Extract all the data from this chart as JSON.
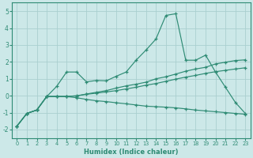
{
  "x": [
    0,
    1,
    2,
    3,
    4,
    5,
    6,
    7,
    8,
    9,
    10,
    11,
    12,
    13,
    14,
    15,
    16,
    17,
    18,
    19,
    20,
    21,
    22,
    23
  ],
  "line1": [
    -1.8,
    -1.05,
    -0.85,
    -0.05,
    0.55,
    1.4,
    1.4,
    0.82,
    0.9,
    0.88,
    1.15,
    1.4,
    2.1,
    2.7,
    3.35,
    4.75,
    4.85,
    2.1,
    2.1,
    2.4,
    1.4,
    0.5,
    -0.4,
    -1.05
  ],
  "line2": [
    -1.8,
    -1.05,
    -0.85,
    -0.05,
    -0.05,
    -0.05,
    -0.12,
    -0.22,
    -0.3,
    -0.35,
    -0.42,
    -0.48,
    -0.55,
    -0.62,
    -0.65,
    -0.68,
    -0.72,
    -0.78,
    -0.85,
    -0.9,
    -0.95,
    -1.0,
    -1.05,
    -1.1
  ],
  "line3": [
    -1.8,
    -1.05,
    -0.85,
    -0.05,
    -0.05,
    -0.05,
    -0.02,
    0.1,
    0.2,
    0.3,
    0.45,
    0.58,
    0.68,
    0.8,
    1.0,
    1.12,
    1.28,
    1.45,
    1.58,
    1.68,
    1.88,
    1.98,
    2.08,
    2.12
  ],
  "line4": [
    -1.8,
    -1.05,
    -0.85,
    -0.05,
    -0.05,
    -0.05,
    0.0,
    0.08,
    0.15,
    0.22,
    0.3,
    0.4,
    0.5,
    0.62,
    0.72,
    0.85,
    0.98,
    1.1,
    1.2,
    1.32,
    1.42,
    1.5,
    1.58,
    1.65
  ],
  "color": "#2e8b74",
  "bg_color": "#cce8e8",
  "grid_color": "#aacfcf",
  "xlabel": "Humidex (Indice chaleur)",
  "ylim": [
    -2.5,
    5.5
  ],
  "xlim": [
    -0.5,
    23.5
  ],
  "yticks": [
    -2,
    -1,
    0,
    1,
    2,
    3,
    4,
    5
  ]
}
